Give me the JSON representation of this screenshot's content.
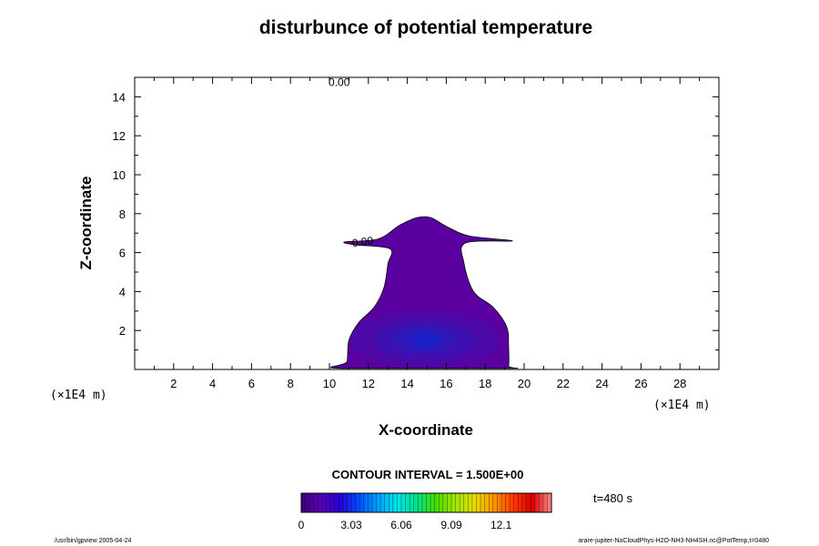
{
  "chart_data": {
    "type": "contour",
    "title": "disturbunce of potential temperature",
    "xlabel": "X-coordinate",
    "ylabel": "Z-coordinate",
    "x_unit": "(×1E4 m)",
    "y_unit": "(×1E4 m)",
    "xlim": [
      0,
      30
    ],
    "ylim": [
      0,
      15
    ],
    "x_ticks": [
      2,
      4,
      6,
      8,
      10,
      12,
      14,
      16,
      18,
      20,
      22,
      24,
      26,
      28
    ],
    "y_ticks": [
      2,
      4,
      6,
      8,
      10,
      12,
      14
    ],
    "contour_interval_text": "CONTOUR INTERVAL = 1.500E+00",
    "contour_labels": [
      {
        "text": "0.00",
        "x": 10.5,
        "z": 14.8
      },
      {
        "text": "0.00",
        "x": 11.7,
        "z": 6.6
      }
    ],
    "plume_outline": [
      [
        10.6,
        0.05
      ],
      [
        10.9,
        0.4
      ],
      [
        11.0,
        1.5
      ],
      [
        11.5,
        2.4
      ],
      [
        12.3,
        3.2
      ],
      [
        12.8,
        4.2
      ],
      [
        13.0,
        5.4
      ],
      [
        13.1,
        6.2
      ],
      [
        11.3,
        6.4
      ],
      [
        10.8,
        6.55
      ],
      [
        12.5,
        6.7
      ],
      [
        13.6,
        7.4
      ],
      [
        14.5,
        7.8
      ],
      [
        15.2,
        7.8
      ],
      [
        16.0,
        7.35
      ],
      [
        17.2,
        6.85
      ],
      [
        19.4,
        6.6
      ],
      [
        17.0,
        6.5
      ],
      [
        16.9,
        5.5
      ],
      [
        17.4,
        4.0
      ],
      [
        18.4,
        3.2
      ],
      [
        19.1,
        2.2
      ],
      [
        19.2,
        1.2
      ],
      [
        19.2,
        0.2
      ],
      [
        19.0,
        0.05
      ]
    ],
    "core_center": {
      "x": 14.9,
      "z": 1.55
    },
    "core_levels": [
      {
        "rx": 3.8,
        "rz": 1.45,
        "color": "#4d08a8"
      },
      {
        "rx": 2.6,
        "rz": 1.05,
        "color": "#3f0fb0"
      },
      {
        "rx": 1.6,
        "rz": 0.7,
        "color": "#2e18b8"
      },
      {
        "rx": 0.75,
        "rz": 0.38,
        "color": "#1a1fc8"
      }
    ],
    "plume_color": "#5a00a0",
    "colorbar": {
      "tick_labels": [
        "0",
        "3.03",
        "6.06",
        "9.09",
        "12.1"
      ],
      "tick_values": [
        0,
        3.03,
        6.06,
        9.09,
        12.1
      ],
      "range": [
        0,
        15.15
      ],
      "stops": [
        "#3c0078",
        "#5a00b4",
        "#2800dc",
        "#0050ff",
        "#00a0ff",
        "#00e6e6",
        "#00e08c",
        "#46dc00",
        "#a0e600",
        "#e6dc00",
        "#ff9600",
        "#ff3c00",
        "#dc0000",
        "#ff8c8c"
      ]
    }
  },
  "annotations": {
    "time": "t=480 s",
    "footer_left": "/usr/bin/gpview 2005-04-24",
    "footer_right": "arare-jupiter-NoCloudPhys-H2O-NH3-NH4SH.nc@PotTemp,t=0480"
  }
}
